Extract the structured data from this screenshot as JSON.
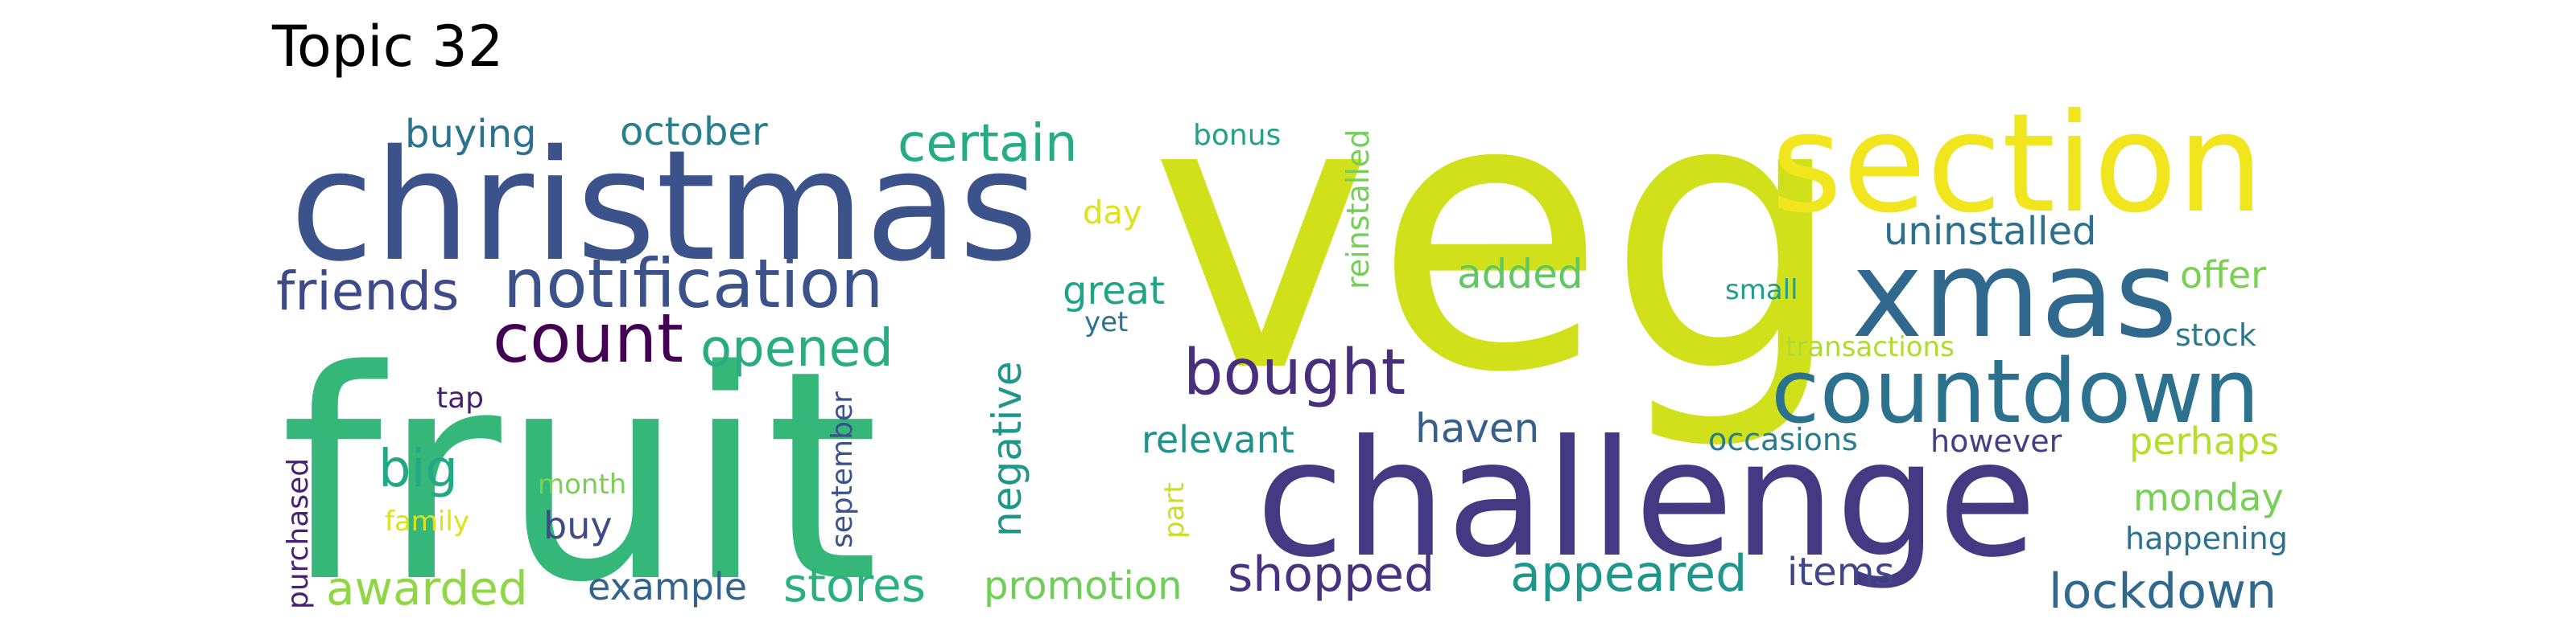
{
  "title": "Topic 32",
  "words": [
    {
      "text": "veg",
      "color": "#d0e11c"
    },
    {
      "text": "fruit",
      "color": "#35b779"
    },
    {
      "text": "christmas",
      "color": "#3b528b"
    },
    {
      "text": "challenge",
      "color": "#443a83"
    },
    {
      "text": "section",
      "color": "#f1e51d"
    },
    {
      "text": "xmas",
      "color": "#31688e"
    },
    {
      "text": "countdown",
      "color": "#2c728e"
    },
    {
      "text": "notification",
      "color": "#3b528b"
    },
    {
      "text": "bought",
      "color": "#472f7d"
    },
    {
      "text": "count",
      "color": "#440154"
    },
    {
      "text": "certain",
      "color": "#25ac82"
    },
    {
      "text": "friends",
      "color": "#3e4989"
    },
    {
      "text": "opened",
      "color": "#27ad81"
    },
    {
      "text": "shopped",
      "color": "#46337f"
    },
    {
      "text": "appeared",
      "color": "#1f968b"
    },
    {
      "text": "lockdown",
      "color": "#31688e"
    },
    {
      "text": "awarded",
      "color": "#8fd744"
    },
    {
      "text": "stores",
      "color": "#2ab07f"
    },
    {
      "text": "negative",
      "color": "#1f958b"
    },
    {
      "text": "haven",
      "color": "#355f8d"
    },
    {
      "text": "uninstalled",
      "color": "#2d708e"
    },
    {
      "text": "added",
      "color": "#5ec962"
    },
    {
      "text": "great",
      "color": "#20a486"
    },
    {
      "text": "relevant",
      "color": "#21918c"
    },
    {
      "text": "big",
      "color": "#22a884"
    },
    {
      "text": "buying",
      "color": "#2c728e"
    },
    {
      "text": "october",
      "color": "#277f8e"
    },
    {
      "text": "promotion",
      "color": "#6ece58"
    },
    {
      "text": "example",
      "color": "#33638d"
    },
    {
      "text": "items",
      "color": "#404688"
    },
    {
      "text": "offer",
      "color": "#7ad151"
    },
    {
      "text": "perhaps",
      "color": "#b5de2b"
    },
    {
      "text": "monday",
      "color": "#75d054"
    },
    {
      "text": "occasions",
      "color": "#287c8e"
    },
    {
      "text": "however",
      "color": "#433e85"
    },
    {
      "text": "reinstalled",
      "color": "#73d056"
    },
    {
      "text": "day",
      "color": "#dde318"
    },
    {
      "text": "buy",
      "color": "#3e4a89"
    },
    {
      "text": "happening",
      "color": "#2c728e"
    },
    {
      "text": "purchased",
      "color": "#482173"
    },
    {
      "text": "september",
      "color": "#3b528b"
    },
    {
      "text": "stock",
      "color": "#2a788e"
    },
    {
      "text": "bonus",
      "color": "#1fa287"
    },
    {
      "text": "small",
      "color": "#1f9e89"
    },
    {
      "text": "transactions",
      "color": "#addc30"
    },
    {
      "text": "tap",
      "color": "#481f70"
    },
    {
      "text": "yet",
      "color": "#2c728e"
    },
    {
      "text": "month",
      "color": "#7ad151"
    },
    {
      "text": "family",
      "color": "#dde318"
    },
    {
      "text": "part",
      "color": "#c8e020"
    }
  ]
}
